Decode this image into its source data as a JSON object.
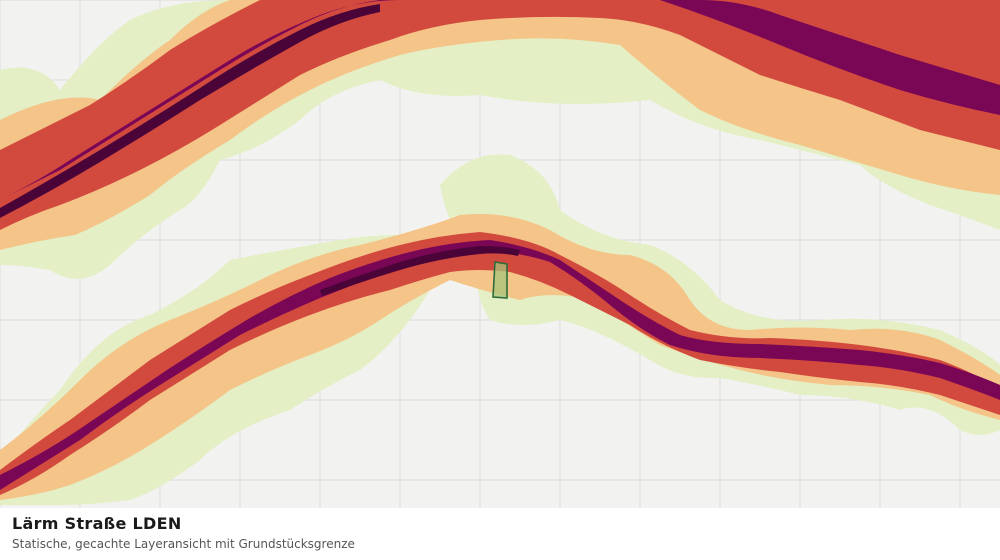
{
  "caption": {
    "title": "Lärm Straße LDEN",
    "subtitle": "Statische, gecachte Layeransicht mit Grundstücksgrenze"
  },
  "map": {
    "layer": "Lärm Straße LDEN",
    "colors": {
      "background": "#f2f3f1",
      "grid": "#dcdedb",
      "noise_low": "#e4efc6",
      "noise_medium": "#f4c488",
      "noise_high": "#d24a3e",
      "noise_very_high": "#7a0656",
      "noise_extreme": "#4a0438",
      "parcel_fill": "#a7c47a",
      "parcel_stroke": "#2f6b38"
    }
  }
}
